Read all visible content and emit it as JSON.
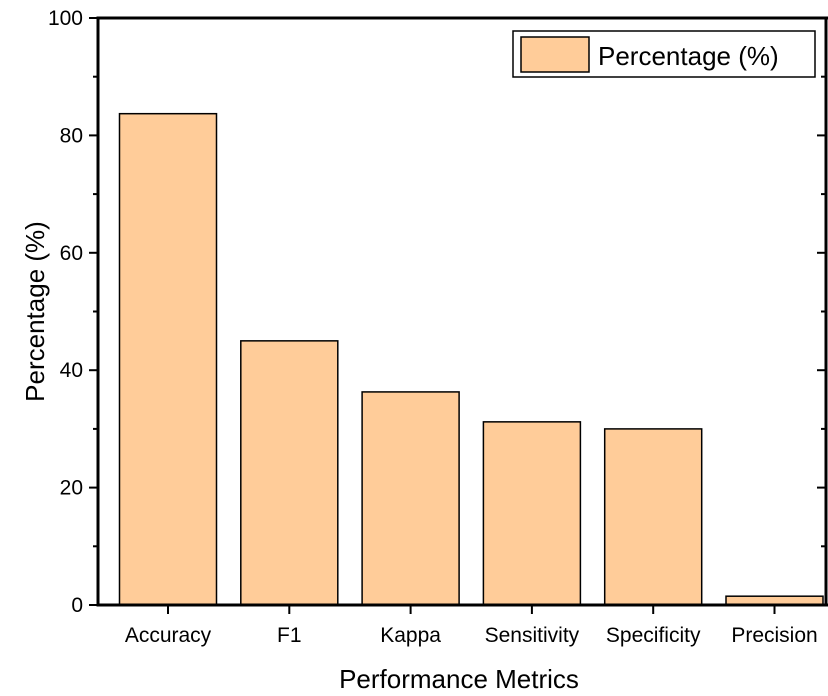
{
  "colors": {
    "bar_fill": "#FFCC99",
    "bar_stroke": "#000000",
    "axis": "#000000",
    "background": "#FFFFFF"
  },
  "chart_data": {
    "type": "bar",
    "categories": [
      "Accuracy",
      "F1",
      "Kappa",
      "Sensitivity",
      "Specificity",
      "Precision"
    ],
    "series": [
      {
        "name": "Percentage (%)",
        "values": [
          83.7,
          45.0,
          36.3,
          31.2,
          30.0,
          1.5
        ]
      }
    ],
    "xlabel": "Performance Metrics",
    "ylabel": "Percentage (%)",
    "ylim": [
      0,
      100
    ],
    "yticks": [
      "0",
      "20",
      "40",
      "60",
      "80",
      "100"
    ],
    "grid": false,
    "legend": "top-right"
  }
}
